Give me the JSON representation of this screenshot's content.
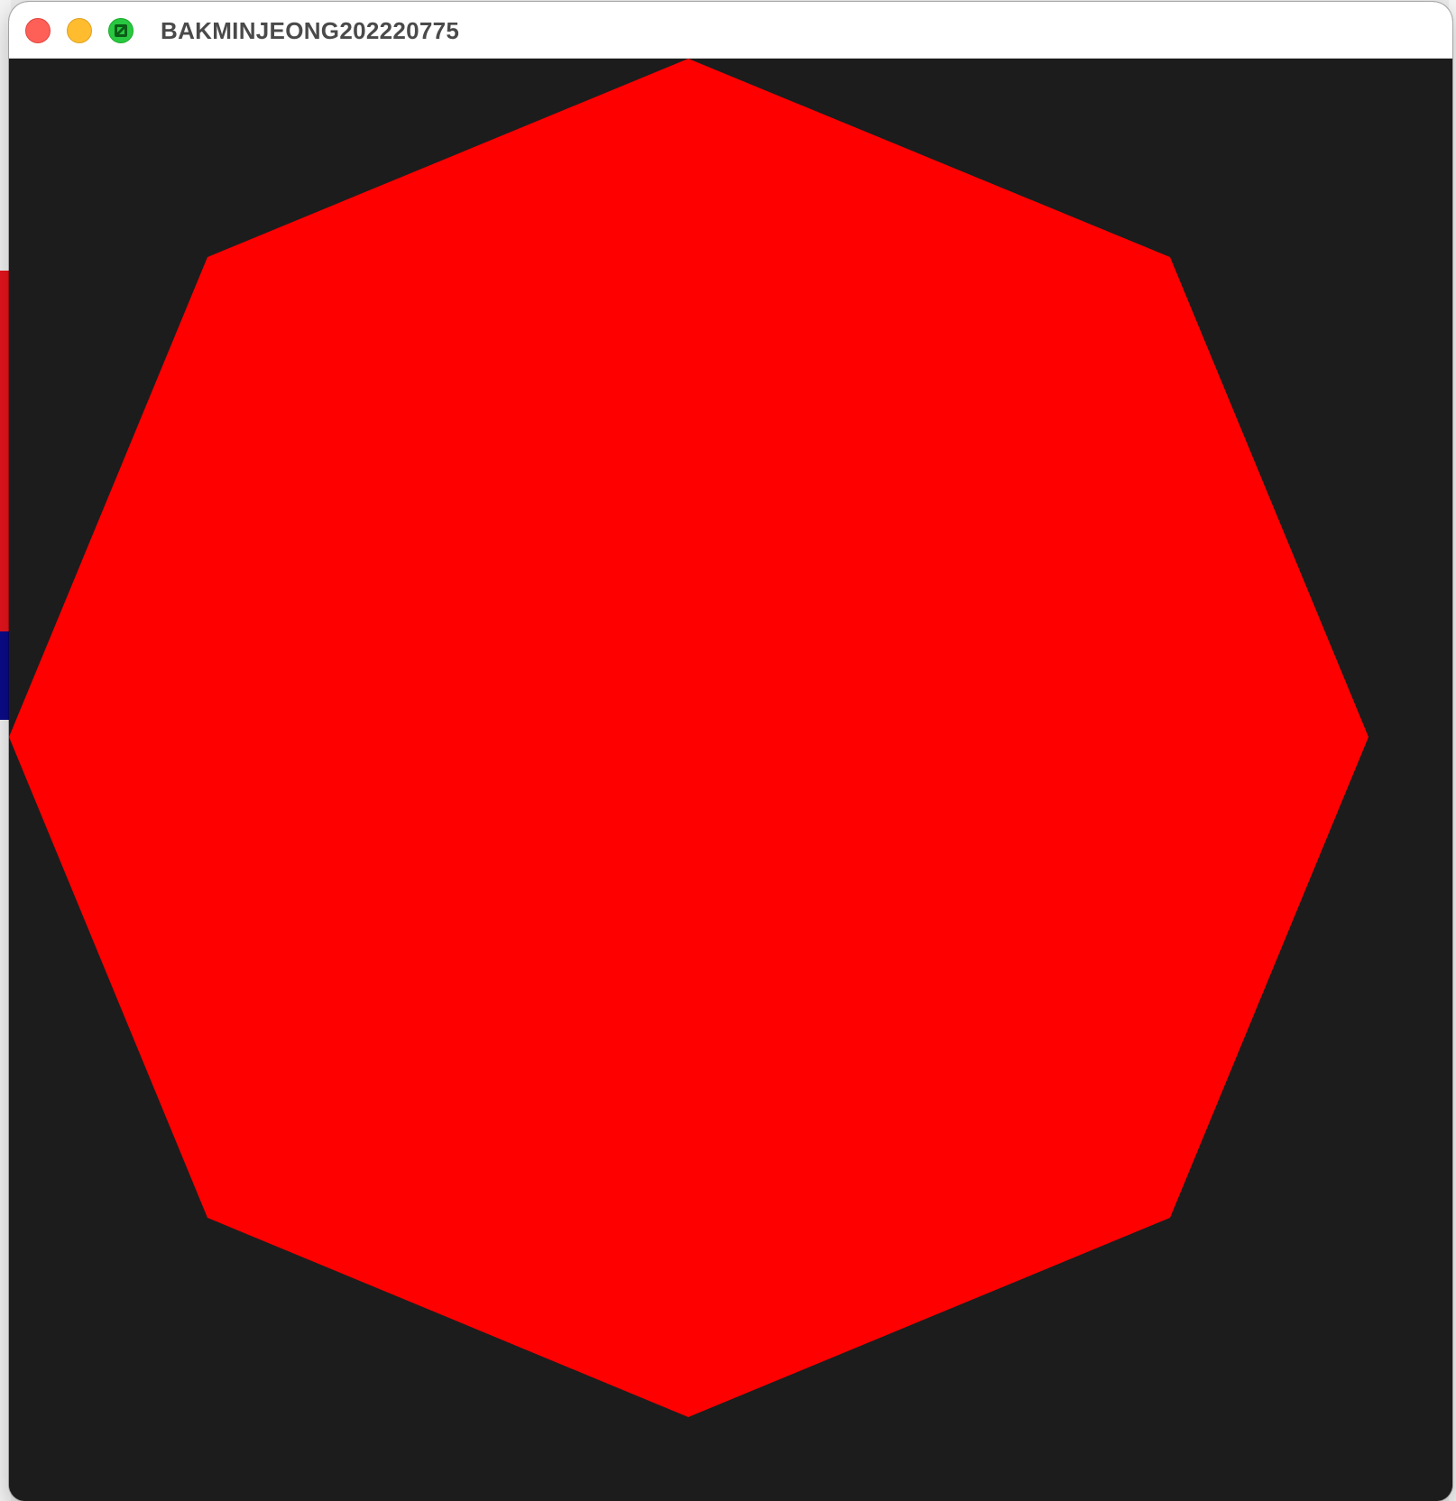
{
  "window": {
    "title": "BAKMINJEONG202220775"
  },
  "canvas": {
    "background_color": "#1c1c1c",
    "shape": {
      "type": "octagon",
      "fill_color": "#ff0000"
    }
  },
  "colors": {
    "close": "#fe5f57",
    "minimize": "#febc2e",
    "zoom": "#28c840"
  }
}
